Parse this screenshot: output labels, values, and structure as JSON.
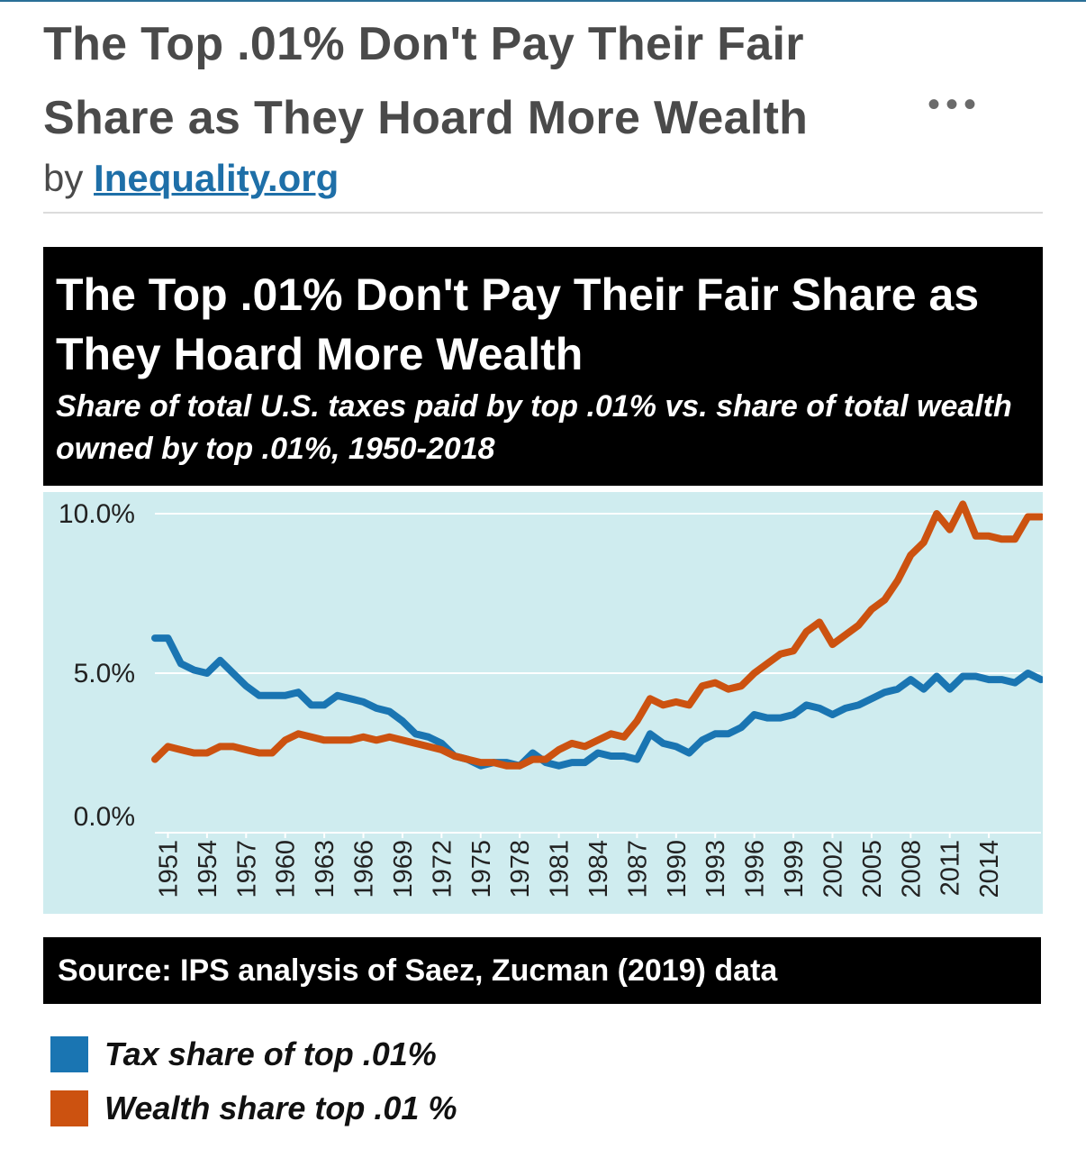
{
  "post": {
    "title": "The Top .01% Don't Pay Their Fair Share as They Hoard More Wealth",
    "byline_prefix": "by",
    "author": "Inequality.org",
    "more_label": "•••"
  },
  "chart_header": {
    "title": "The Top .01% Don't Pay Their Fair Share as They Hoard More Wealth",
    "subtitle": "Share of total U.S. taxes paid by top .01% vs. share of total wealth owned by top .01%, 1950-2018"
  },
  "source": "Source: IPS analysis of Saez, Zucman (2019) data",
  "colors": {
    "tax": "#1a75b2",
    "wealth": "#cc5210",
    "plot_bg": "#cfecef"
  },
  "chart_data": {
    "type": "line",
    "title": "The Top .01% Don't Pay Their Fair Share as They Hoard More Wealth",
    "subtitle": "Share of total U.S. taxes paid by top .01% vs. share of total wealth owned by top .01%, 1950-2018",
    "ylim": [
      0,
      10
    ],
    "y_ticks": [
      "0.0%",
      "5.0%",
      "10.0%"
    ],
    "x_tick_labels": [
      "1951",
      "1954",
      "1957",
      "1960",
      "1963",
      "1966",
      "1969",
      "1972",
      "1975",
      "1978",
      "1981",
      "1984",
      "1987",
      "1990",
      "1993",
      "1996",
      "1999",
      "2002",
      "2005",
      "2008",
      "2011",
      "2014"
    ],
    "grid": "horizontal",
    "legend_position": "bottom-left",
    "x": [
      1950,
      1951,
      1952,
      1953,
      1954,
      1955,
      1956,
      1957,
      1958,
      1959,
      1960,
      1961,
      1962,
      1963,
      1964,
      1965,
      1966,
      1967,
      1968,
      1969,
      1970,
      1971,
      1972,
      1973,
      1974,
      1975,
      1976,
      1977,
      1978,
      1979,
      1980,
      1981,
      1982,
      1983,
      1984,
      1985,
      1986,
      1987,
      1988,
      1989,
      1990,
      1991,
      1992,
      1993,
      1994,
      1995,
      1996,
      1997,
      1998,
      1999,
      2000,
      2001,
      2002,
      2003,
      2004,
      2005,
      2006,
      2007,
      2008,
      2009,
      2010,
      2011,
      2012,
      2013,
      2014,
      2015,
      2016,
      2017,
      2018
    ],
    "series": [
      {
        "name": "Tax share of top .01%",
        "color": "#1a75b2",
        "values": [
          6.1,
          6.1,
          5.3,
          5.1,
          5.0,
          5.4,
          5.0,
          4.6,
          4.3,
          4.3,
          4.3,
          4.4,
          4.0,
          4.0,
          4.3,
          4.2,
          4.1,
          3.9,
          3.8,
          3.5,
          3.1,
          3.0,
          2.8,
          2.4,
          2.3,
          2.1,
          2.2,
          2.2,
          2.1,
          2.5,
          2.2,
          2.1,
          2.2,
          2.2,
          2.5,
          2.4,
          2.4,
          2.3,
          3.1,
          2.8,
          2.7,
          2.5,
          2.9,
          3.1,
          3.1,
          3.3,
          3.7,
          3.6,
          3.6,
          3.7,
          4.0,
          3.9,
          3.7,
          3.9,
          4.0,
          4.2,
          4.4,
          4.5,
          4.8,
          4.5,
          4.9,
          4.5,
          4.9,
          4.9,
          4.8,
          4.8,
          4.7,
          5.0,
          4.8
        ]
      },
      {
        "name": "Wealth share top .01 %",
        "color": "#cc5210",
        "values": [
          2.3,
          2.7,
          2.6,
          2.5,
          2.5,
          2.7,
          2.7,
          2.6,
          2.5,
          2.5,
          2.9,
          3.1,
          3.0,
          2.9,
          2.9,
          2.9,
          3.0,
          2.9,
          3.0,
          2.9,
          2.8,
          2.7,
          2.6,
          2.4,
          2.3,
          2.2,
          2.2,
          2.1,
          2.1,
          2.3,
          2.3,
          2.6,
          2.8,
          2.7,
          2.9,
          3.1,
          3.0,
          3.5,
          4.2,
          4.0,
          4.1,
          4.0,
          4.6,
          4.7,
          4.5,
          4.6,
          5.0,
          5.3,
          5.6,
          5.7,
          6.3,
          6.6,
          5.9,
          6.2,
          6.5,
          7.0,
          7.3,
          7.9,
          8.7,
          9.1,
          10.0,
          9.5,
          10.3,
          9.3,
          9.3,
          9.2,
          9.2,
          9.9,
          9.9
        ]
      }
    ]
  }
}
